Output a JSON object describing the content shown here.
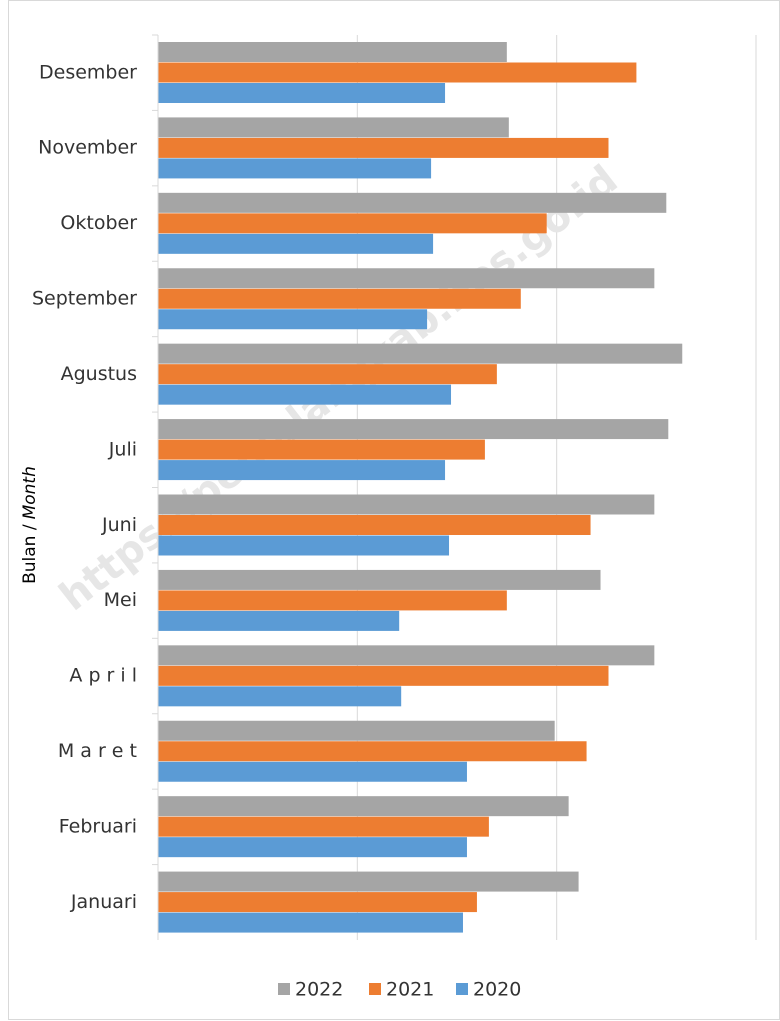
{
  "chart_data": {
    "type": "hbar",
    "ylabel_main": "Bulan /",
    "ylabel_italic": "Month",
    "watermark": "https://pemalangkab.bps.go.id",
    "categories": [
      "Januari",
      "Februari",
      "M a r e t",
      "A p r i l",
      "Mei",
      "Juni",
      "Juli",
      "Agustus",
      "September",
      "Oktober",
      "November",
      "Desember"
    ],
    "series": [
      {
        "name": "2022",
        "color": "#a5a5a5",
        "values": [
          2.11,
          2.06,
          1.99,
          2.49,
          2.22,
          2.49,
          2.56,
          2.63,
          2.49,
          2.55,
          1.76,
          1.75
        ]
      },
      {
        "name": "2021",
        "color": "#ed7d31",
        "values": [
          1.6,
          1.66,
          2.15,
          2.26,
          1.75,
          2.17,
          1.64,
          1.7,
          1.82,
          1.95,
          2.26,
          2.4
        ]
      },
      {
        "name": "2020",
        "color": "#5b9bd5",
        "values": [
          1.53,
          1.55,
          1.55,
          1.22,
          1.21,
          1.46,
          1.44,
          1.47,
          1.35,
          1.38,
          1.37,
          1.44
        ]
      }
    ],
    "xlim": [
      0,
      3
    ],
    "xticks": [
      0,
      1,
      2,
      3
    ],
    "grid": true,
    "legend": "bottom"
  }
}
